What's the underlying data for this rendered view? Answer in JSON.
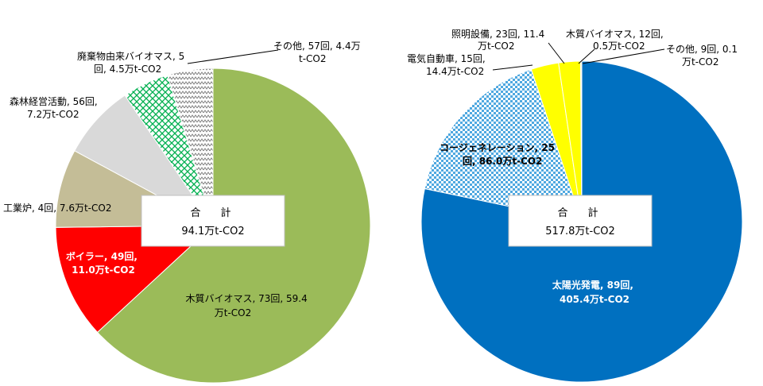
{
  "colors": {
    "wood_biomass": "#9bbb59",
    "boiler": "#ff0000",
    "industrial_furnace": "#c4bd97",
    "forest": "#d9d9d9",
    "waste_biomass": "#00b050",
    "other": "#7f7f7f",
    "solar": "#0070c0",
    "cogeneration": "#4fa8e0",
    "ev": "#ffff00",
    "lighting": "#ffff00",
    "wood_biomass_right": "#ffc000",
    "other_right": "#ff9900"
  },
  "chart_data": [
    {
      "type": "pie",
      "title": "",
      "total": {
        "label": "合　計",
        "value": "94.1万t-CO2"
      },
      "slices": [
        {
          "name": "木質バイオマス",
          "count": 73,
          "value": 59.4,
          "label_lines": [
            "木質バイオマス, 73回, 59.4",
            "万t-CO2"
          ]
        },
        {
          "name": "ボイラー",
          "count": 49,
          "value": 11.0,
          "label_lines": [
            "ボイラー, 49回,",
            "11.0万t-CO2"
          ]
        },
        {
          "name": "工業炉",
          "count": 4,
          "value": 7.6,
          "label_lines": [
            "工業炉, 4回, 7.6万t-CO2"
          ]
        },
        {
          "name": "森林経営活動",
          "count": 56,
          "value": 7.2,
          "label_lines": [
            "森林経営活動, 56回,",
            "7.2万t-CO2"
          ]
        },
        {
          "name": "廃棄物由来バイオマス",
          "count": 5,
          "value": 4.5,
          "label_lines": [
            "廃棄物由来バイオマス, 5",
            "回, 4.5万t-CO2"
          ]
        },
        {
          "name": "その他",
          "count": 57,
          "value": 4.4,
          "label_lines": [
            "その他, 57回, 4.4万",
            "t-CO2"
          ]
        }
      ]
    },
    {
      "type": "pie",
      "title": "",
      "total": {
        "label": "合　計",
        "value": "517.8万t-CO2"
      },
      "slices": [
        {
          "name": "太陽光発電",
          "count": 89,
          "value": 405.4,
          "label_lines": [
            "太陽光発電, 89回,",
            "405.4万t-CO2"
          ]
        },
        {
          "name": "コージェネレーション",
          "count": 25,
          "value": 86.0,
          "label_lines": [
            "コージェネレーション, 25",
            "回, 86.0万t-CO2"
          ]
        },
        {
          "name": "電気自動車",
          "count": 15,
          "value": 14.4,
          "label_lines": [
            "電気自動車, 15回,",
            "14.4万t-CO2"
          ]
        },
        {
          "name": "照明設備",
          "count": 23,
          "value": 11.4,
          "label_lines": [
            "照明設備, 23回, 11.4",
            "万t-CO2"
          ]
        },
        {
          "name": "木質バイオマス",
          "count": 12,
          "value": 0.5,
          "label_lines": [
            "木質バイオマス, 12回,",
            "0.5万t-CO2"
          ]
        },
        {
          "name": "その他",
          "count": 9,
          "value": 0.1,
          "label_lines": [
            "その他, 9回, 0.1",
            "万t-CO2"
          ]
        }
      ]
    }
  ]
}
